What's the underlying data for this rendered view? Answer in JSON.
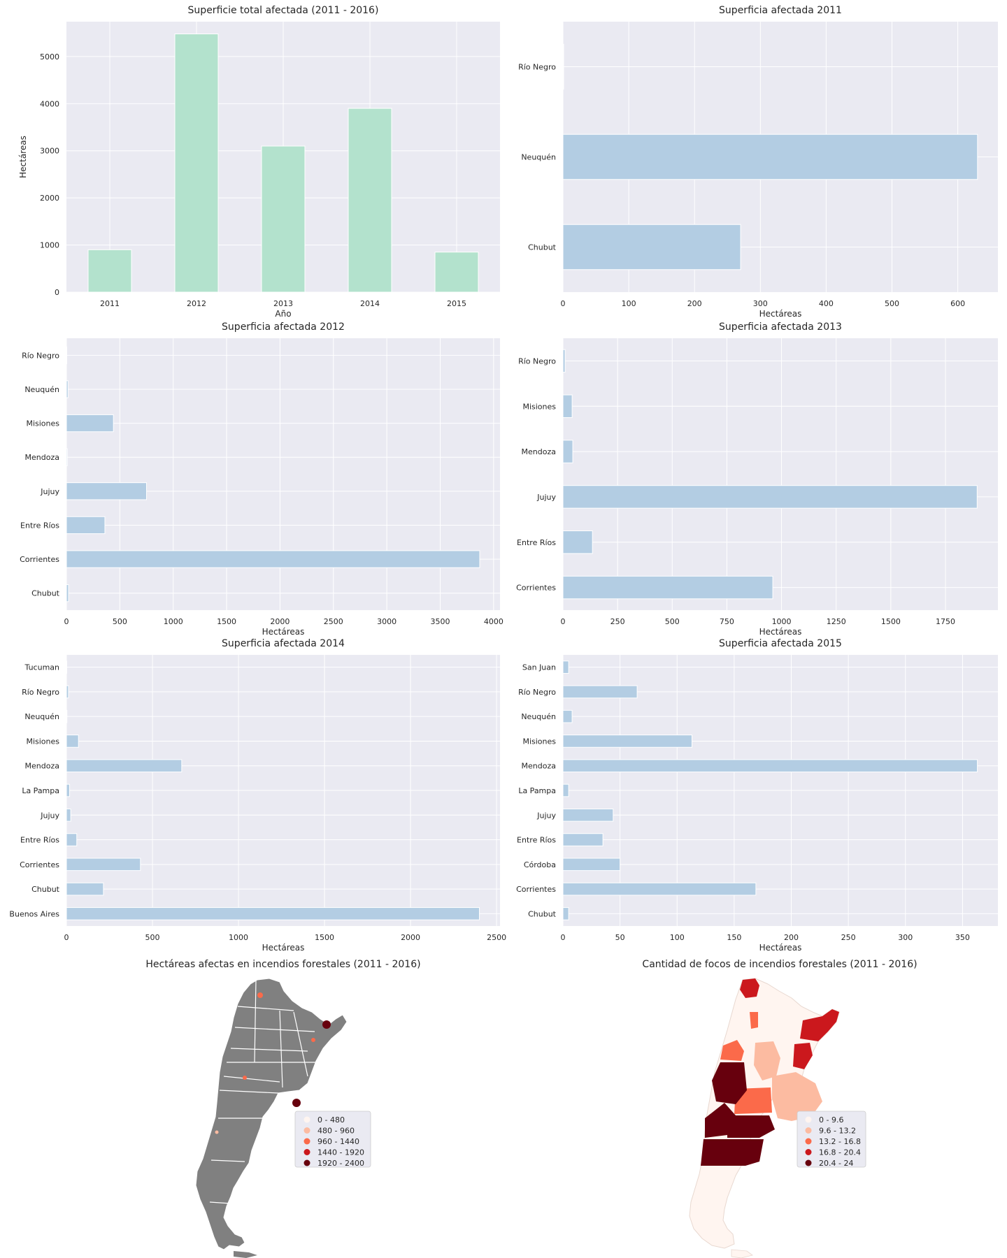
{
  "colors": {
    "panel_bg": "#eaeaf2",
    "grid": "#ffffff",
    "total_bar": "#b3e2cd",
    "year_bar": "#b3cde3",
    "map_grey": "#808080",
    "reds": [
      "#fff5f0",
      "#fcbba1",
      "#fb6a4a",
      "#cb181d",
      "#67000d"
    ]
  },
  "chart_data": [
    {
      "id": "total",
      "type": "bar",
      "orientation": "vertical",
      "title": "Superficie total afectada (2011 - 2016)",
      "xlabel": "Año",
      "ylabel": "Hectáreas",
      "categories": [
        "2011",
        "2012",
        "2013",
        "2014",
        "2015"
      ],
      "values": [
        900,
        5480,
        3100,
        3900,
        850
      ],
      "ylim": [
        0,
        5740
      ],
      "yticks": [
        "0",
        "1000",
        "2000",
        "3000",
        "4000",
        "5000"
      ],
      "grid": true
    },
    {
      "id": "y2011",
      "type": "bar",
      "orientation": "horizontal",
      "title": "Superficia afectada 2011",
      "xlabel": "Hectáreas",
      "categories": [
        "Río Negro",
        "Neuquén",
        "Chubut"
      ],
      "values": [
        1,
        630,
        270
      ],
      "xlim": [
        0,
        661
      ],
      "xticks": [
        "0",
        "100",
        "200",
        "300",
        "400",
        "500",
        "600"
      ],
      "grid": true
    },
    {
      "id": "y2012",
      "type": "bar",
      "orientation": "horizontal",
      "title": "Superficia afectada 2012",
      "xlabel": "Hectáreas",
      "categories": [
        "Río Negro",
        "Neuquén",
        "Misiones",
        "Mendoza",
        "Jujuy",
        "Entre Ríos",
        "Corrientes",
        "Chubut"
      ],
      "values": [
        3,
        15,
        440,
        8,
        750,
        360,
        3870,
        20
      ],
      "xlim": [
        0,
        4060
      ],
      "xticks": [
        "0",
        "500",
        "1000",
        "1500",
        "2000",
        "2500",
        "3000",
        "3500",
        "4000"
      ],
      "grid": true
    },
    {
      "id": "y2013",
      "type": "bar",
      "orientation": "horizontal",
      "title": "Superficia afectada 2013",
      "xlabel": "Hectáreas",
      "categories": [
        "Río Negro",
        "Misiones",
        "Mendoza",
        "Jujuy",
        "Entre Ríos",
        "Corrientes"
      ],
      "values": [
        10,
        42,
        45,
        1895,
        135,
        960
      ],
      "xlim": [
        0,
        1990
      ],
      "xticks": [
        "0",
        "250",
        "500",
        "750",
        "1000",
        "1250",
        "1500",
        "1750"
      ],
      "grid": true
    },
    {
      "id": "y2014",
      "type": "bar",
      "orientation": "horizontal",
      "title": "Superficia afectada 2014",
      "xlabel": "Hectáreas",
      "categories": [
        "Tucuman",
        "Río Negro",
        "Neuquén",
        "Misiones",
        "Mendoza",
        "La Pampa",
        "Jujuy",
        "Entre Ríos",
        "Corrientes",
        "Chubut",
        "Buenos Aires"
      ],
      "values": [
        2,
        12,
        3,
        70,
        670,
        18,
        25,
        60,
        430,
        215,
        2400
      ],
      "xlim": [
        0,
        2520
      ],
      "xticks": [
        "0",
        "500",
        "1000",
        "1500",
        "2000",
        "2500"
      ],
      "grid": true
    },
    {
      "id": "y2015",
      "type": "bar",
      "orientation": "horizontal",
      "title": "Superficia afectada 2015",
      "xlabel": "Hectáreas",
      "categories": [
        "San Juan",
        "Río Negro",
        "Neuquén",
        "Misiones",
        "Mendoza",
        "La Pampa",
        "Jujuy",
        "Entre Ríos",
        "Córdoba",
        "Corrientes",
        "Chubut"
      ],
      "values": [
        5,
        65,
        8,
        113,
        363,
        5,
        44,
        35,
        50,
        169,
        5
      ],
      "xlim": [
        0,
        381
      ],
      "xticks": [
        "0",
        "50",
        "100",
        "150",
        "200",
        "250",
        "300",
        "350"
      ],
      "grid": true
    }
  ],
  "maps": {
    "left": {
      "title": "Hectáreas afectas en incendios forestales (2011 - 2016)",
      "legend": [
        "0 - 480",
        "480 - 960",
        "960 - 1440",
        "1440 - 1920",
        "1920 - 2400"
      ]
    },
    "right": {
      "title": "Cantidad de focos de incendios forestales (2011 - 2016)",
      "legend": [
        "0 - 9.6",
        "9.6 - 13.2",
        "13.2 - 16.8",
        "16.8 - 20.4",
        "20.4 - 24"
      ]
    }
  }
}
